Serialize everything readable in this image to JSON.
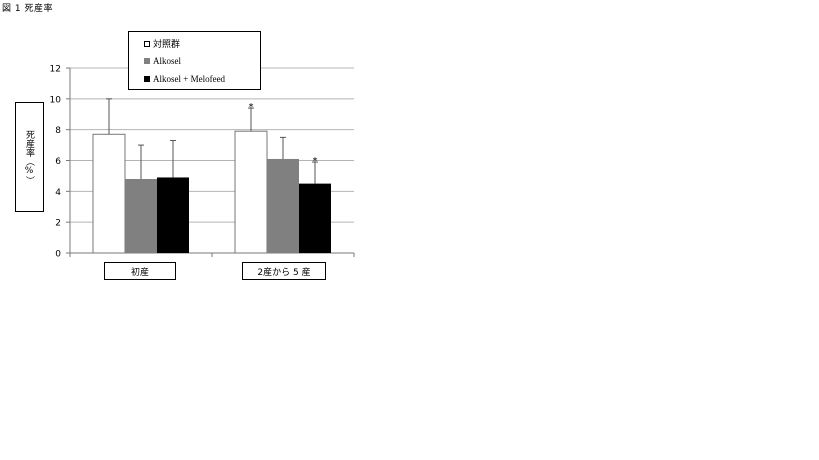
{
  "figure_title": "図 1  死産率",
  "chart_data": {
    "type": "bar",
    "title": "",
    "ylabel": "死産率（%）",
    "xlabel": "",
    "ylim": [
      0,
      12
    ],
    "yticks": [
      {
        "value": 0,
        "label": "0"
      },
      {
        "value": 2,
        "label": "2"
      },
      {
        "value": 4,
        "label": "4"
      },
      {
        "value": 6,
        "label": "6"
      },
      {
        "value": 8,
        "label": "8"
      },
      {
        "value": 10,
        "label": "10"
      },
      {
        "value": 12,
        "label": "12"
      }
    ],
    "grid": true,
    "legend_position": "top",
    "categories": [
      "初産",
      "2産から 5 産"
    ],
    "series": [
      {
        "name": "対照群",
        "color": "#ffffff",
        "values": [
          7.7,
          7.9
        ],
        "errors": [
          2.3,
          1.5
        ],
        "significance": [
          "",
          "*"
        ]
      },
      {
        "name": "Alkosel",
        "color": "#808080",
        "values": [
          4.8,
          6.1
        ],
        "errors": [
          2.2,
          1.4
        ],
        "significance": [
          "",
          ""
        ]
      },
      {
        "name": "Alkosel + Melofeed",
        "color": "#000000",
        "values": [
          4.9,
          4.5
        ],
        "errors": [
          2.4,
          1.4
        ],
        "significance": [
          "",
          "*"
        ]
      }
    ]
  }
}
